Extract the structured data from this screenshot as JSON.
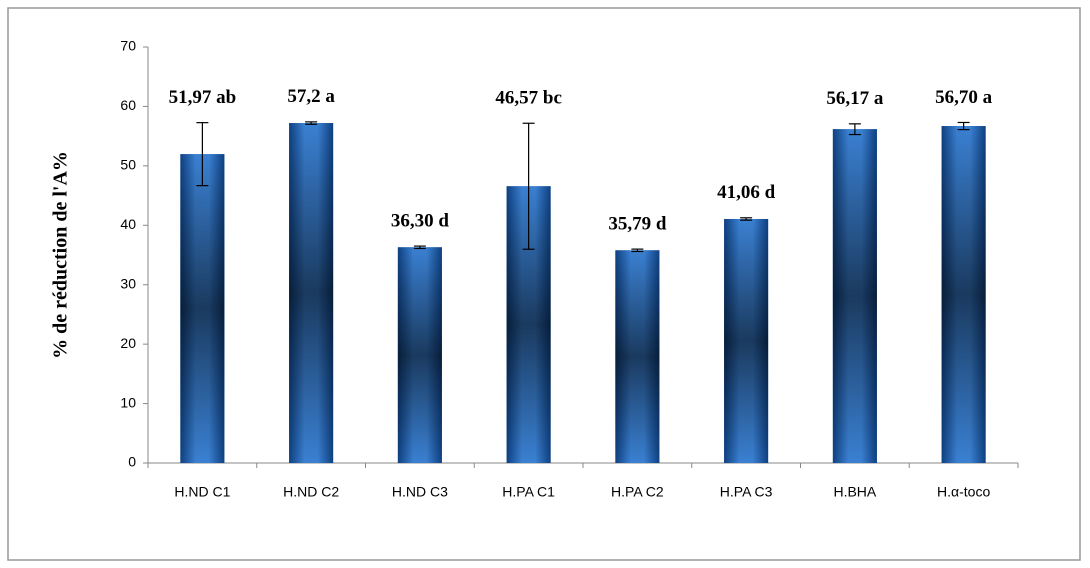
{
  "chart_data": {
    "type": "bar",
    "y_label": "% de réduction de l'A%",
    "categories": [
      "H.ND C1",
      "H.ND C2",
      "H.ND C3",
      "H.PA C1",
      "H.PA C2",
      "H.PA C3",
      "H.BHA",
      "H.α-toco"
    ],
    "values": [
      51.97,
      57.2,
      36.3,
      46.57,
      35.79,
      41.06,
      56.17,
      56.7
    ],
    "value_labels": [
      "51,97 ab",
      "57,2 a",
      "36,30 d",
      "46,57 bc",
      "35,79 d",
      "41,06 d",
      "56,17 a",
      "56,70 a"
    ],
    "errors": [
      5.3,
      0.2,
      0.2,
      10.6,
      0.2,
      0.2,
      0.9,
      0.6
    ],
    "color": "#1f5fb0",
    "ylim": [
      0,
      70
    ],
    "yticks": [
      0,
      10,
      20,
      30,
      40,
      50,
      60,
      70
    ],
    "grid": false
  }
}
